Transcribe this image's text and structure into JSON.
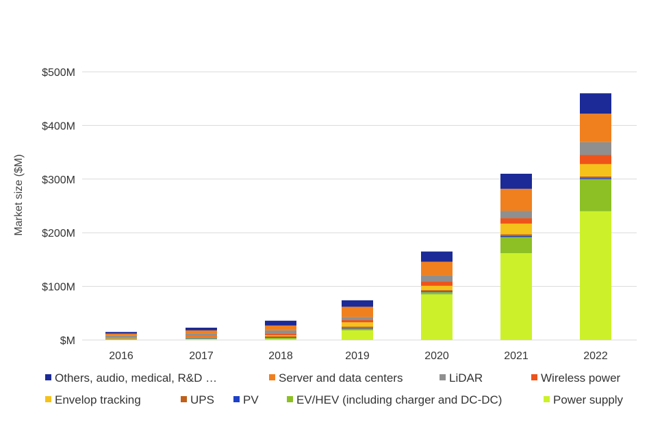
{
  "chart_data": {
    "type": "bar",
    "stacked": true,
    "title": "",
    "xlabel": "",
    "ylabel": "Market size ($M)",
    "categories": [
      "2016",
      "2017",
      "2018",
      "2019",
      "2020",
      "2021",
      "2022"
    ],
    "ylim": [
      0,
      500
    ],
    "yticks": [
      {
        "value": 0,
        "label": "$M"
      },
      {
        "value": 100,
        "label": "$100M"
      },
      {
        "value": 200,
        "label": "$200M"
      },
      {
        "value": 300,
        "label": "$300M"
      },
      {
        "value": 400,
        "label": "$400M"
      },
      {
        "value": 500,
        "label": "$500M"
      }
    ],
    "grid": true,
    "legend_position": "bottom",
    "series": [
      {
        "name": "Power supply",
        "color": "#ccf12a",
        "values": [
          1,
          2,
          2,
          18,
          85,
          162,
          240
        ]
      },
      {
        "name": "EV/HEV (including charger and DC-DC)",
        "color": "#8cc024",
        "values": [
          1,
          1,
          2,
          3,
          4,
          30,
          60
        ]
      },
      {
        "name": "PV",
        "color": "#1e40c8",
        "values": [
          0.5,
          1,
          1,
          1,
          1,
          2,
          2
        ]
      },
      {
        "name": "UPS",
        "color": "#c0601a",
        "values": [
          0.5,
          1,
          2,
          3,
          3,
          3,
          3
        ]
      },
      {
        "name": "Envelop tracking",
        "color": "#f5c21b",
        "values": [
          1,
          1,
          2,
          8,
          8,
          20,
          23
        ]
      },
      {
        "name": "Wireless power",
        "color": "#ef5319",
        "values": [
          1,
          2,
          3,
          4,
          8,
          10,
          17
        ]
      },
      {
        "name": "LiDAR",
        "color": "#8f8f8f",
        "values": [
          3,
          4,
          6,
          6,
          12,
          14,
          24
        ]
      },
      {
        "name": "Server and data centers",
        "color": "#f0801e",
        "values": [
          4,
          6,
          9,
          19,
          25,
          41,
          53
        ]
      },
      {
        "name": "Others, audio, medical, R&D …",
        "color": "#1b2a96",
        "values": [
          3,
          5,
          9,
          12,
          19,
          28,
          38
        ]
      }
    ],
    "legend_order": [
      "Others, audio, medical, R&D …",
      "Server and data centers",
      "LiDAR",
      "Wireless power",
      "Envelop tracking",
      "UPS",
      "PV",
      "EV/HEV (including charger and DC-DC)",
      "Power supply"
    ],
    "colors": {
      "gridline": "#d9d9d9",
      "text": "#333333"
    }
  }
}
